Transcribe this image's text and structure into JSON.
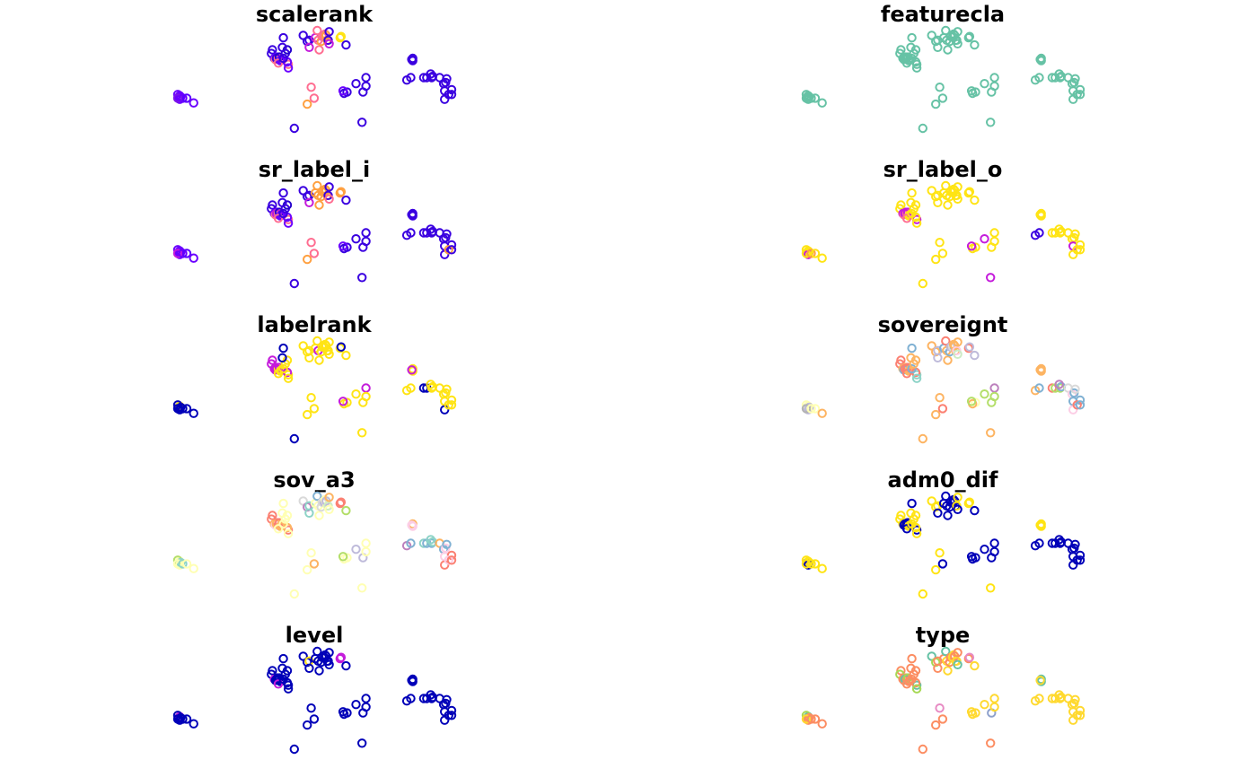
{
  "chart_data": {
    "type": "scatter",
    "layout": "small-multiples 5x2",
    "grid": false,
    "axes": false,
    "legend": "none",
    "points": [
      [
        -171,
        -14
      ],
      [
        -170,
        -13
      ],
      [
        -172,
        -12
      ],
      [
        -169,
        -14
      ],
      [
        -170,
        -16
      ],
      [
        -172,
        -15
      ],
      [
        -167,
        -15
      ],
      [
        -163,
        -15
      ],
      [
        -156,
        -19
      ],
      [
        -77,
        25
      ],
      [
        -78,
        22
      ],
      [
        -72,
        18
      ],
      [
        -75,
        18
      ],
      [
        -72,
        19
      ],
      [
        -71,
        18
      ],
      [
        -74,
        17
      ],
      [
        -73,
        18
      ],
      [
        -70,
        19
      ],
      [
        -68,
        17
      ],
      [
        -69,
        16
      ],
      [
        -71,
        14
      ],
      [
        -61,
        13
      ],
      [
        -62,
        15
      ],
      [
        -61,
        10
      ],
      [
        -66,
        18
      ],
      [
        -64,
        22
      ],
      [
        -62,
        25
      ],
      [
        -67,
        27
      ],
      [
        -66,
        35
      ],
      [
        -55,
        -40
      ],
      [
        -46,
        37
      ],
      [
        -42,
        32
      ],
      [
        -40,
        33
      ],
      [
        -40,
        27
      ],
      [
        -38,
        -6
      ],
      [
        -42,
        -20
      ],
      [
        -35,
        -15
      ],
      [
        -34,
        35
      ],
      [
        -32,
        41
      ],
      [
        -31,
        33
      ],
      [
        -30,
        25
      ],
      [
        -28,
        32
      ],
      [
        -27,
        36
      ],
      [
        -25,
        36
      ],
      [
        -24,
        38
      ],
      [
        -22,
        33
      ],
      [
        -23,
        37
      ],
      [
        -21,
        33
      ],
      [
        -20,
        40
      ],
      [
        -20,
        30
      ],
      [
        -9,
        35
      ],
      [
        -8,
        36
      ],
      [
        -2,
        -10
      ],
      [
        -5,
        -11
      ],
      [
        -6,
        -9
      ],
      [
        -3,
        29
      ],
      [
        7,
        -3
      ],
      [
        14,
        -10
      ],
      [
        13,
        -35
      ],
      [
        17,
        2
      ],
      [
        17,
        -5
      ],
      [
        58,
        0
      ],
      [
        62,
        2
      ],
      [
        64,
        18
      ],
      [
        64,
        16
      ],
      [
        63,
        17
      ],
      [
        75,
        2
      ],
      [
        78,
        2
      ],
      [
        83,
        2
      ],
      [
        84,
        3
      ],
      [
        82,
        5
      ],
      [
        91,
        2
      ],
      [
        95,
        -3
      ],
      [
        97,
        -2
      ],
      [
        98,
        1
      ],
      [
        96,
        -9
      ],
      [
        96,
        -16
      ],
      [
        103,
        -8
      ],
      [
        100,
        -12
      ],
      [
        103,
        -12
      ]
    ],
    "panels": [
      {
        "title": "scalerank",
        "colors": [
          "#6A00FF",
          "#6A00FF",
          "#6A00FF",
          "#6A00FF",
          "#6A00FF",
          "#7B14E8",
          "#6A00FF",
          "#5A00FF",
          "#6A00FF",
          "#3A00E0",
          "#3A00E0",
          "#2400CC",
          "#6A00FF",
          "#6A00FF",
          "#FF6E91",
          "#FF6E91",
          "#3A00E0",
          "#2400CC",
          "#6A00FF",
          "#6A00FF",
          "#FF6E91",
          "#FF6E91",
          "#6A00FF",
          "#6A00FF",
          "#3A00E0",
          "#3A00E0",
          "#2400CC",
          "#3A00E0",
          "#3A00E0",
          "#3A00E0",
          "#3A00E0",
          "#3A00E0",
          "#3A00E0",
          "#C41BDB",
          "#FF6E91",
          "#FFA040",
          "#FF6E91",
          "#C41BDB",
          "#FF6E91",
          "#FF6E91",
          "#FF6E91",
          "#FFA040",
          "#FF6E91",
          "#FF6E91",
          "#FF6E91",
          "#FFA040",
          "#FFA040",
          "#3A00E0",
          "#3A00E0",
          "#C41BDB",
          "#FFE414",
          "#FFE414",
          "#3A00E0",
          "#3A00E0",
          "#6A00FF",
          "#3A00E0",
          "#3A00E0",
          "#3A00E0",
          "#3A00E0",
          "#3A00E0",
          "#3A00E0",
          "#3A00E0",
          "#3A00E0",
          "#3A00E0",
          "#3A00E0",
          "#3A00E0",
          "#3A00E0",
          "#3A00E0",
          "#3A00E0",
          "#3A00E0",
          "#3A00E0",
          "#3A00E0",
          "#3A00E0",
          "#3A00E0",
          "#3A00E0",
          "#3A00E0",
          "#3A00E0",
          "#3A00E0",
          "#3A00E0",
          "#3A00E0"
        ]
      },
      {
        "title": "featurecla",
        "colors": [
          "#66C2A5"
        ]
      },
      {
        "title": "sr_label_i",
        "colors": [
          "#6A00FF",
          "#6A00FF",
          "#6A00FF",
          "#6A00FF",
          "#6A00FF",
          "#C41BDB",
          "#6A00FF",
          "#5A00FF",
          "#6A00FF",
          "#3A00E0",
          "#3A00E0",
          "#2400CC",
          "#6A00FF",
          "#6A00FF",
          "#FF6E91",
          "#FF6E91",
          "#C41BDB",
          "#2400CC",
          "#6A00FF",
          "#6A00FF",
          "#FF6E91",
          "#FF6E91",
          "#6A00FF",
          "#6A00FF",
          "#3A00E0",
          "#3A00E0",
          "#2400CC",
          "#3A00E0",
          "#3A00E0",
          "#3A00E0",
          "#3A00E0",
          "#3A00E0",
          "#3A00E0",
          "#C41BDB",
          "#FF6E91",
          "#FFA040",
          "#FF6E91",
          "#FFA040",
          "#FFA040",
          "#FFA040",
          "#FFA040",
          "#FFA040",
          "#FFA040",
          "#FFA040",
          "#FFA040",
          "#FFA040",
          "#FFA040",
          "#3A00E0",
          "#3A00E0",
          "#FF6E91",
          "#FFA040",
          "#FFA040",
          "#3A00E0",
          "#3A00E0",
          "#6A00FF",
          "#3A00E0",
          "#3A00E0",
          "#3A00E0",
          "#3A00E0",
          "#3A00E0",
          "#3A00E0",
          "#3A00E0",
          "#3A00E0",
          "#3A00E0",
          "#3A00E0",
          "#3A00E0",
          "#3A00E0",
          "#3A00E0",
          "#3A00E0",
          "#3A00E0",
          "#3A00E0",
          "#3A00E0",
          "#3A00E0",
          "#3A00E0",
          "#3A00E0",
          "#3A00E0",
          "#3A00E0",
          "#3A00E0",
          "#FFA040",
          "#3A00E0"
        ]
      },
      {
        "title": "sr_label_o",
        "colors": [
          "#FFE414",
          "#FFE414",
          "#FFE414",
          "#FFE414",
          "#C41BDB",
          "#FFE414",
          "#FFA040",
          "#FFE414",
          "#FFE414",
          "#FFE414",
          "#FFE414",
          "#FFE414",
          "#C41BDB",
          "#C41BDB",
          "#FF6E91",
          "#FF6E91",
          "#C41BDB",
          "#C41BDB",
          "#FFE414",
          "#FFE414",
          "#FF6E91",
          "#C41BDB",
          "#FFE414",
          "#FFE414",
          "#FFE414",
          "#FFE414",
          "#FFE414",
          "#FFE414",
          "#FFE414",
          "#FFE414",
          "#FFE414",
          "#FFE414",
          "#FFE414",
          "#FFE414",
          "#FFE414",
          "#FFE414",
          "#FFE414",
          "#FFE414",
          "#FFE414",
          "#FFE414",
          "#FFE414",
          "#FFE414",
          "#FFE414",
          "#FFE414",
          "#FFE414",
          "#FFE414",
          "#FFE414",
          "#FFE414",
          "#FFE414",
          "#FFE414",
          "#FFE414",
          "#FFE414",
          "#FFE414",
          "#FFE414",
          "#C41BDB",
          "#FFE414",
          "#C41BDB",
          "#FFE414",
          "#C41BDB",
          "#FFE414",
          "#FFE414",
          "#3A00E0",
          "#3A00E0",
          "#FFE414",
          "#FFE414",
          "#FFE414",
          "#FFE414",
          "#FFE414",
          "#FFE414",
          "#FFE414",
          "#FFE414",
          "#FFE414",
          "#FFE414",
          "#FFE414",
          "#FFE414",
          "#C41BDB",
          "#FFE414",
          "#FFE414",
          "#FFE414",
          "#FFE414"
        ]
      },
      {
        "title": "labelrank",
        "colors": [
          "#0000B8",
          "#FFE414",
          "#0000B8",
          "#0000B8",
          "#0000B8",
          "#0000B8",
          "#0000B8",
          "#0000B8",
          "#0000B8",
          "#C41BDB",
          "#C41BDB",
          "#FFE414",
          "#C41BDB",
          "#C41BDB",
          "#FFE414",
          "#C41BDB",
          "#C41BDB",
          "#C41BDB",
          "#FFE414",
          "#FFE414",
          "#FFE414",
          "#FFE414",
          "#C41BDB",
          "#FFE414",
          "#FFE414",
          "#FFE414",
          "#FFE414",
          "#0000B8",
          "#0000B8",
          "#0000B8",
          "#FFE414",
          "#FFE414",
          "#FFE414",
          "#FFE414",
          "#FFE414",
          "#FFE414",
          "#FFE414",
          "#FFE414",
          "#FFE414",
          "#C41BDB",
          "#FFE414",
          "#FFE414",
          "#FFE414",
          "#FFE414",
          "#FFE414",
          "#FFE414",
          "#FFE414",
          "#FFE414",
          "#FFE414",
          "#FFE414",
          "#FFE414",
          "#0000B8",
          "#FFE414",
          "#FFE414",
          "#C41BDB",
          "#FFE414",
          "#FFE414",
          "#FFE414",
          "#FFE414",
          "#C41BDB",
          "#FFE414",
          "#FFE414",
          "#FFE414",
          "#FFE414",
          "#FFE414",
          "#C41BDB",
          "#0000B8",
          "#0000B8",
          "#FFE414",
          "#FFE414",
          "#FFE414",
          "#FFE414",
          "#FFE414",
          "#FFE414",
          "#FFE414",
          "#FFE414",
          "#0000B8",
          "#FFE414",
          "#FFE414",
          "#FFE414"
        ]
      },
      {
        "title": "sovereignt",
        "colors": [
          "#B3B3B3",
          "#FFFFB3",
          "#FFFFB3",
          "#BEBADA",
          "#BEBADA",
          "#B3B3B3",
          "#FFFFB3",
          "#FFFFB3",
          "#FDB462",
          "#FB8072",
          "#FB8072",
          "#80B1D3",
          "#FDB462",
          "#FDB462",
          "#FB8072",
          "#80B1D3",
          "#FB8072",
          "#FB8072",
          "#FDB462",
          "#FDB462",
          "#FB8072",
          "#8DD3C7",
          "#FB8072",
          "#8DD3C7",
          "#80B1D3",
          "#FDB462",
          "#FDB462",
          "#FDB462",
          "#80B1D3",
          "#FDB462",
          "#FDB462",
          "#FDB462",
          "#BEBADA",
          "#BEBADA",
          "#FDB462",
          "#FDB462",
          "#FB8072",
          "#80B1D3",
          "#FB8072",
          "#FDB462",
          "#FDB462",
          "#80B1D3",
          "#BEBADA",
          "#D9D9D9",
          "#FDB462",
          "#FDB462",
          "#FDB462",
          "#FCCDE5",
          "#FDB462",
          "#CCEBC5",
          "#FB8072",
          "#BEBADA",
          "#FFFFB3",
          "#FDB462",
          "#B3DE69",
          "#BEBADA",
          "#B3DE69",
          "#B3DE69",
          "#FDB462",
          "#BC80BD",
          "#B3DE69",
          "#FDB462",
          "#80B1D3",
          "#FDB462",
          "#FDB462",
          "#FDB462",
          "#FB8072",
          "#B3DE69",
          "#B3DE69",
          "#80B1D3",
          "#BC80BD",
          "#D9D9D9",
          "#FCCDE5",
          "#80B1D3",
          "#D9D9D9",
          "#80B1D3",
          "#FCCDE5",
          "#80B1D3",
          "#FB8072",
          "#80B1D3"
        ]
      },
      {
        "title": "sov_a3",
        "colors": [
          "#FFFFB3",
          "#FFFFB3",
          "#B3DE69",
          "#8DD3C7",
          "#FFFFB3",
          "#FFFFB3",
          "#8DD3C7",
          "#FFFFB3",
          "#FFFFB3",
          "#FB8072",
          "#FB8072",
          "#FB8072",
          "#FDB462",
          "#FB8072",
          "#FB8072",
          "#FCCDE5",
          "#FDB462",
          "#FB8072",
          "#FDB462",
          "#FDB462",
          "#FFFFB3",
          "#FB8072",
          "#FDB462",
          "#FFFFB3",
          "#FFFFB3",
          "#FFFFB3",
          "#FFFFB3",
          "#FFFFB3",
          "#FFFFB3",
          "#FFFFB3",
          "#D9D9D9",
          "#BC80BD",
          "#8DD3C7",
          "#8DD3C7",
          "#FFFFB3",
          "#FFFFB3",
          "#FDB462",
          "#FFFFB3",
          "#80B1D3",
          "#FFFFB3",
          "#FFFFB3",
          "#D9D9D9",
          "#D9D9D9",
          "#BEBADA",
          "#FFFFB3",
          "#FFFFB3",
          "#BEBADA",
          "#CCEBC5",
          "#FDB462",
          "#FFFFB3",
          "#FB8072",
          "#FB8072",
          "#FFFFB3",
          "#FFFFB3",
          "#B3DE69",
          "#B3DE69",
          "#BEBADA",
          "#BEBADA",
          "#FFFFB3",
          "#FFFFB3",
          "#FFFFB3",
          "#BC80BD",
          "#80B1D3",
          "#FDB462",
          "#FCCDE5",
          "#FCCDE5",
          "#8DD3C7",
          "#80B1D3",
          "#80B1D3",
          "#8DD3C7",
          "#8DD3C7",
          "#FDB462",
          "#80B1D3",
          "#FCCDE5",
          "#80B1D3",
          "#FCCDE5",
          "#FB8072",
          "#FB8072",
          "#FCCDE5",
          "#FB8072"
        ]
      },
      {
        "title": "adm0_dif",
        "colors": [
          "#0000B8",
          "#FFE414",
          "#FFE414",
          "#FFE414",
          "#0000B8",
          "#FFE414",
          "#FFE414",
          "#FFE414",
          "#FFE414",
          "#FFE414",
          "#FFE414",
          "#FFE414",
          "#FFE414",
          "#FFE414",
          "#0000B8",
          "#0000B8",
          "#0000B8",
          "#0000B8",
          "#FFE414",
          "#FFE414",
          "#0000B8",
          "#0000B8",
          "#FFE414",
          "#FFE414",
          "#FFE414",
          "#FFE414",
          "#FFE414",
          "#FFE414",
          "#0000B8",
          "#FFE414",
          "#FFE414",
          "#FFE414",
          "#FFE414",
          "#0000B8",
          "#FFE414",
          "#FFE414",
          "#0000B8",
          "#0000B8",
          "#0000B8",
          "#0000B8",
          "#0000B8",
          "#0000B8",
          "#0000B8",
          "#0000B8",
          "#0000B8",
          "#0000B8",
          "#0000B8",
          "#FFE414",
          "#FFE414",
          "#0000B8",
          "#FFE414",
          "#FFE414",
          "#0000B8",
          "#0000B8",
          "#0000B8",
          "#0000B8",
          "#0000B8",
          "#0000B8",
          "#FFE414",
          "#0000B8",
          "#0000B8",
          "#0000B8",
          "#0000B8",
          "#FFE414",
          "#FFE414",
          "#FFE414",
          "#0000B8",
          "#0000B8",
          "#0000B8",
          "#0000B8",
          "#0000B8",
          "#0000B8",
          "#0000B8",
          "#0000B8",
          "#0000B8",
          "#0000B8",
          "#0000B8",
          "#0000B8",
          "#0000B8",
          "#0000B8"
        ]
      },
      {
        "title": "level",
        "colors": [
          "#0000B8",
          "#C41BDB",
          "#0000B8",
          "#0000B8",
          "#0000B8",
          "#0000B8",
          "#0000B8",
          "#0000B8",
          "#0000B8",
          "#0000B8",
          "#0000B8",
          "#0000B8",
          "#C41BDB",
          "#0000B8",
          "#0000B8",
          "#0000B8",
          "#0000B8",
          "#0000B8",
          "#0000B8",
          "#0000B8",
          "#C41BDB",
          "#0000B8",
          "#0000B8",
          "#0000B8",
          "#0000B8",
          "#0000B8",
          "#0000B8",
          "#0000B8",
          "#0000B8",
          "#0000B8",
          "#0000B8",
          "#0000B8",
          "#FFE414",
          "#0000B8",
          "#0000B8",
          "#0000B8",
          "#0000B8",
          "#0000B8",
          "#0000B8",
          "#0000B8",
          "#0000B8",
          "#0000B8",
          "#0000B8",
          "#0000B8",
          "#0000B8",
          "#0000B8",
          "#0000B8",
          "#0000B8",
          "#0000B8",
          "#0000B8",
          "#C41BDB",
          "#C41BDB",
          "#0000B8",
          "#0000B8",
          "#0000B8",
          "#0000B8",
          "#0000B8",
          "#0000B8",
          "#0000B8",
          "#0000B8",
          "#0000B8",
          "#0000B8",
          "#0000B8",
          "#0000B8",
          "#0000B8",
          "#0000B8",
          "#0000B8",
          "#0000B8",
          "#0000B8",
          "#0000B8",
          "#0000B8",
          "#0000B8",
          "#0000B8",
          "#0000B8",
          "#0000B8",
          "#0000B8",
          "#0000B8",
          "#0000B8",
          "#0000B8",
          "#0000B8"
        ]
      },
      {
        "title": "type",
        "colors": [
          "#FFD92F",
          "#66C2A5",
          "#A6D854",
          "#FC8D62",
          "#FC8D62",
          "#FFD92F",
          "#FC8D62",
          "#FC8D62",
          "#FC8D62",
          "#FC8D62",
          "#A6D854",
          "#FC8D62",
          "#FC8D62",
          "#FC8D62",
          "#FC8D62",
          "#FC8D62",
          "#66C2A5",
          "#A6D854",
          "#FC8D62",
          "#FC8D62",
          "#FC8D62",
          "#66C2A5",
          "#FC8D62",
          "#A6D854",
          "#FC8D62",
          "#FC8D62",
          "#FC8D62",
          "#FC8D62",
          "#FC8D62",
          "#FC8D62",
          "#66C2A5",
          "#A6D854",
          "#FC8D62",
          "#FC8D62",
          "#E78AC3",
          "#FC8D62",
          "#FC8D62",
          "#FC8D62",
          "#66C2A5",
          "#FFD92F",
          "#FFD92F",
          "#FC8D62",
          "#FC8D62",
          "#FFD92F",
          "#FFD92F",
          "#FFD92F",
          "#FC8D62",
          "#FFD92F",
          "#FC8D62",
          "#66C2A5",
          "#FC8D62",
          "#E78AC3",
          "#FFD92F",
          "#FFD92F",
          "#FFD92F",
          "#FFD92F",
          "#FFD92F",
          "#8DA0CB",
          "#FC8D62",
          "#FFD92F",
          "#FFD92F",
          "#FFD92F",
          "#FFD92F",
          "#66C2A5",
          "#66C2A5",
          "#FFD92F",
          "#FFD92F",
          "#FFD92F",
          "#FFD92F",
          "#FFD92F",
          "#FFD92F",
          "#FFD92F",
          "#FFD92F",
          "#FFD92F",
          "#FFD92F",
          "#FFD92F",
          "#FFD92F",
          "#FFD92F",
          "#FFD92F",
          "#FFD92F"
        ]
      }
    ]
  }
}
